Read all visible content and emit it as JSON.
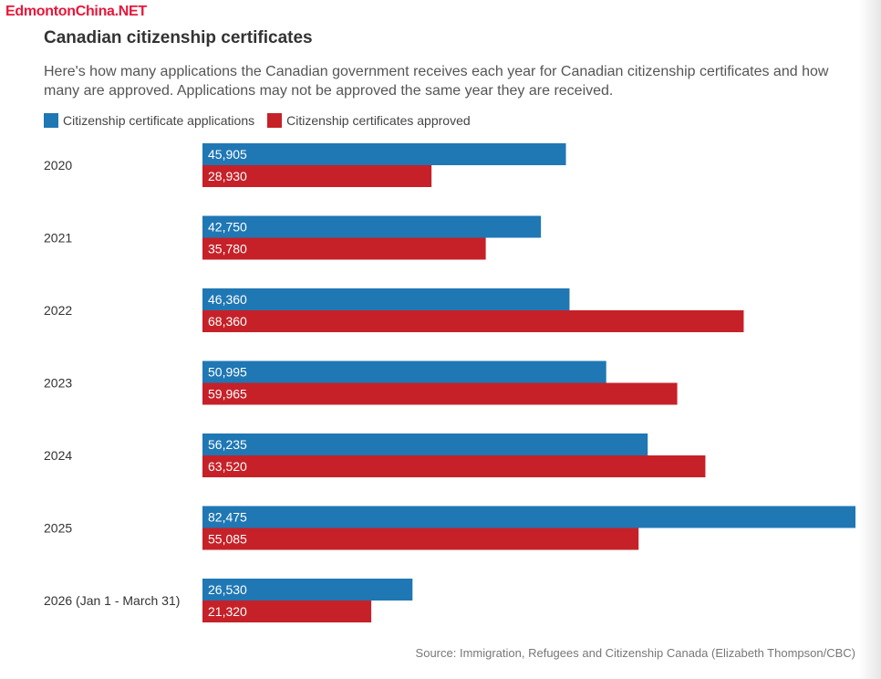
{
  "watermark": "EdmontonChina.NET",
  "colors": {
    "applications": "#1f77b4",
    "approved": "#c62128"
  },
  "chart_data": {
    "type": "bar",
    "orientation": "horizontal",
    "title": "Canadian citizenship certificates",
    "subtitle": "Here's how many applications the Canadian government receives each year for Canadian citizenship certificates and how many are approved. Applications may not be approved the same year they are received.",
    "categories": [
      "2020",
      "2021",
      "2022",
      "2023",
      "2024",
      "2025",
      "2026 (Jan 1 - March 31)"
    ],
    "series": [
      {
        "name": "Citizenship certificate applications",
        "values": [
          45905,
          42750,
          46360,
          50995,
          56235,
          82475,
          26530
        ]
      },
      {
        "name": "Citizenship certificates approved",
        "values": [
          28930,
          35780,
          68360,
          59965,
          63520,
          55085,
          21320
        ]
      }
    ],
    "xlim": [
      0,
      82475
    ],
    "grid": false,
    "legend": "top-left",
    "data_labels": "inside-bar-start",
    "source": "Source: Immigration, Refugees and Citizenship Canada (Elizabeth Thompson/CBC)"
  }
}
